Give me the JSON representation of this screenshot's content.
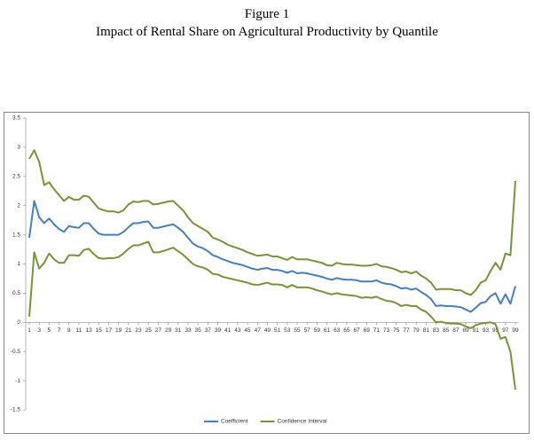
{
  "chart_data": {
    "type": "line",
    "title": "Figure 1",
    "subtitle": "Impact of Rental Share on Agricultural Productivity by Quantile",
    "x": [
      1,
      2,
      3,
      4,
      5,
      6,
      7,
      8,
      9,
      10,
      11,
      12,
      13,
      14,
      15,
      16,
      17,
      18,
      19,
      20,
      21,
      22,
      23,
      24,
      25,
      26,
      27,
      28,
      29,
      30,
      31,
      32,
      33,
      34,
      35,
      36,
      37,
      38,
      39,
      40,
      41,
      42,
      43,
      44,
      45,
      46,
      47,
      48,
      49,
      50,
      51,
      52,
      53,
      54,
      55,
      56,
      57,
      58,
      59,
      60,
      61,
      62,
      63,
      64,
      65,
      66,
      67,
      68,
      69,
      70,
      71,
      72,
      73,
      74,
      75,
      76,
      77,
      78,
      79,
      80,
      81,
      82,
      83,
      84,
      85,
      86,
      87,
      88,
      89,
      90,
      91,
      92,
      93,
      94,
      95,
      96,
      97,
      98,
      99
    ],
    "xticks": [
      1,
      3,
      5,
      7,
      9,
      11,
      13,
      15,
      17,
      19,
      21,
      23,
      25,
      27,
      29,
      31,
      33,
      35,
      37,
      39,
      41,
      43,
      45,
      47,
      49,
      51,
      53,
      55,
      57,
      59,
      61,
      63,
      65,
      67,
      69,
      71,
      73,
      75,
      77,
      79,
      81,
      83,
      85,
      87,
      89,
      91,
      93,
      95,
      97,
      99
    ],
    "ylim": [
      -1.5,
      3.5
    ],
    "yticks": [
      -1.5,
      -1,
      -0.5,
      0,
      0.5,
      1,
      1.5,
      2,
      2.5,
      3,
      3.5
    ],
    "grid": false,
    "legend": "bottom",
    "series": [
      {
        "name": "Coefficient",
        "color": "#4a7ebb",
        "values": [
          1.45,
          2.08,
          1.8,
          1.7,
          1.78,
          1.68,
          1.6,
          1.55,
          1.65,
          1.63,
          1.62,
          1.7,
          1.7,
          1.6,
          1.52,
          1.5,
          1.5,
          1.5,
          1.5,
          1.55,
          1.63,
          1.7,
          1.7,
          1.72,
          1.73,
          1.62,
          1.62,
          1.64,
          1.66,
          1.68,
          1.62,
          1.55,
          1.45,
          1.35,
          1.3,
          1.27,
          1.22,
          1.15,
          1.12,
          1.08,
          1.05,
          1.02,
          1.0,
          0.98,
          0.95,
          0.92,
          0.9,
          0.92,
          0.93,
          0.9,
          0.9,
          0.88,
          0.85,
          0.88,
          0.84,
          0.85,
          0.84,
          0.82,
          0.8,
          0.78,
          0.75,
          0.73,
          0.76,
          0.74,
          0.73,
          0.73,
          0.72,
          0.7,
          0.7,
          0.7,
          0.72,
          0.68,
          0.66,
          0.65,
          0.62,
          0.58,
          0.59,
          0.56,
          0.58,
          0.52,
          0.47,
          0.4,
          0.28,
          0.29,
          0.28,
          0.28,
          0.27,
          0.26,
          0.22,
          0.18,
          0.25,
          0.33,
          0.35,
          0.45,
          0.5,
          0.32,
          0.48,
          0.32,
          0.62
        ]
      },
      {
        "name": "Confidence Interval",
        "color": "#77933c",
        "values": [
          2.8,
          2.95,
          2.75,
          2.35,
          2.4,
          2.28,
          2.18,
          2.08,
          2.15,
          2.1,
          2.1,
          2.17,
          2.15,
          2.05,
          1.95,
          1.92,
          1.9,
          1.9,
          1.88,
          1.92,
          2.02,
          2.07,
          2.06,
          2.08,
          2.08,
          2.02,
          2.03,
          2.05,
          2.07,
          2.08,
          2.0,
          1.92,
          1.8,
          1.7,
          1.65,
          1.6,
          1.55,
          1.45,
          1.42,
          1.38,
          1.33,
          1.3,
          1.27,
          1.24,
          1.2,
          1.17,
          1.14,
          1.15,
          1.16,
          1.13,
          1.13,
          1.1,
          1.07,
          1.12,
          1.08,
          1.08,
          1.08,
          1.06,
          1.04,
          1.02,
          0.98,
          0.97,
          1.02,
          1.0,
          0.99,
          0.99,
          0.98,
          0.97,
          0.97,
          0.98,
          1.0,
          0.96,
          0.95,
          0.93,
          0.9,
          0.86,
          0.87,
          0.84,
          0.87,
          0.8,
          0.75,
          0.68,
          0.56,
          0.57,
          0.57,
          0.57,
          0.55,
          0.55,
          0.5,
          0.47,
          0.55,
          0.68,
          0.72,
          0.88,
          1.02,
          0.9,
          1.18,
          1.15,
          2.42
        ],
        "lower_values": [
          0.1,
          1.2,
          0.92,
          1.02,
          1.18,
          1.08,
          1.02,
          1.02,
          1.15,
          1.15,
          1.14,
          1.24,
          1.26,
          1.17,
          1.1,
          1.09,
          1.1,
          1.1,
          1.12,
          1.18,
          1.26,
          1.32,
          1.32,
          1.35,
          1.38,
          1.2,
          1.2,
          1.22,
          1.25,
          1.28,
          1.22,
          1.16,
          1.08,
          1.0,
          0.96,
          0.94,
          0.9,
          0.83,
          0.82,
          0.78,
          0.76,
          0.74,
          0.72,
          0.7,
          0.68,
          0.65,
          0.64,
          0.66,
          0.68,
          0.65,
          0.65,
          0.64,
          0.6,
          0.64,
          0.6,
          0.6,
          0.6,
          0.58,
          0.55,
          0.53,
          0.5,
          0.48,
          0.5,
          0.48,
          0.47,
          0.46,
          0.45,
          0.42,
          0.43,
          0.42,
          0.44,
          0.4,
          0.37,
          0.36,
          0.33,
          0.28,
          0.3,
          0.28,
          0.28,
          0.22,
          0.18,
          0.1,
          0.0,
          0.01,
          -0.01,
          -0.02,
          -0.02,
          -0.03,
          -0.07,
          -0.1,
          -0.05,
          -0.02,
          -0.01,
          0.0,
          -0.03,
          -0.28,
          -0.25,
          -0.5,
          -1.15
        ]
      }
    ]
  }
}
